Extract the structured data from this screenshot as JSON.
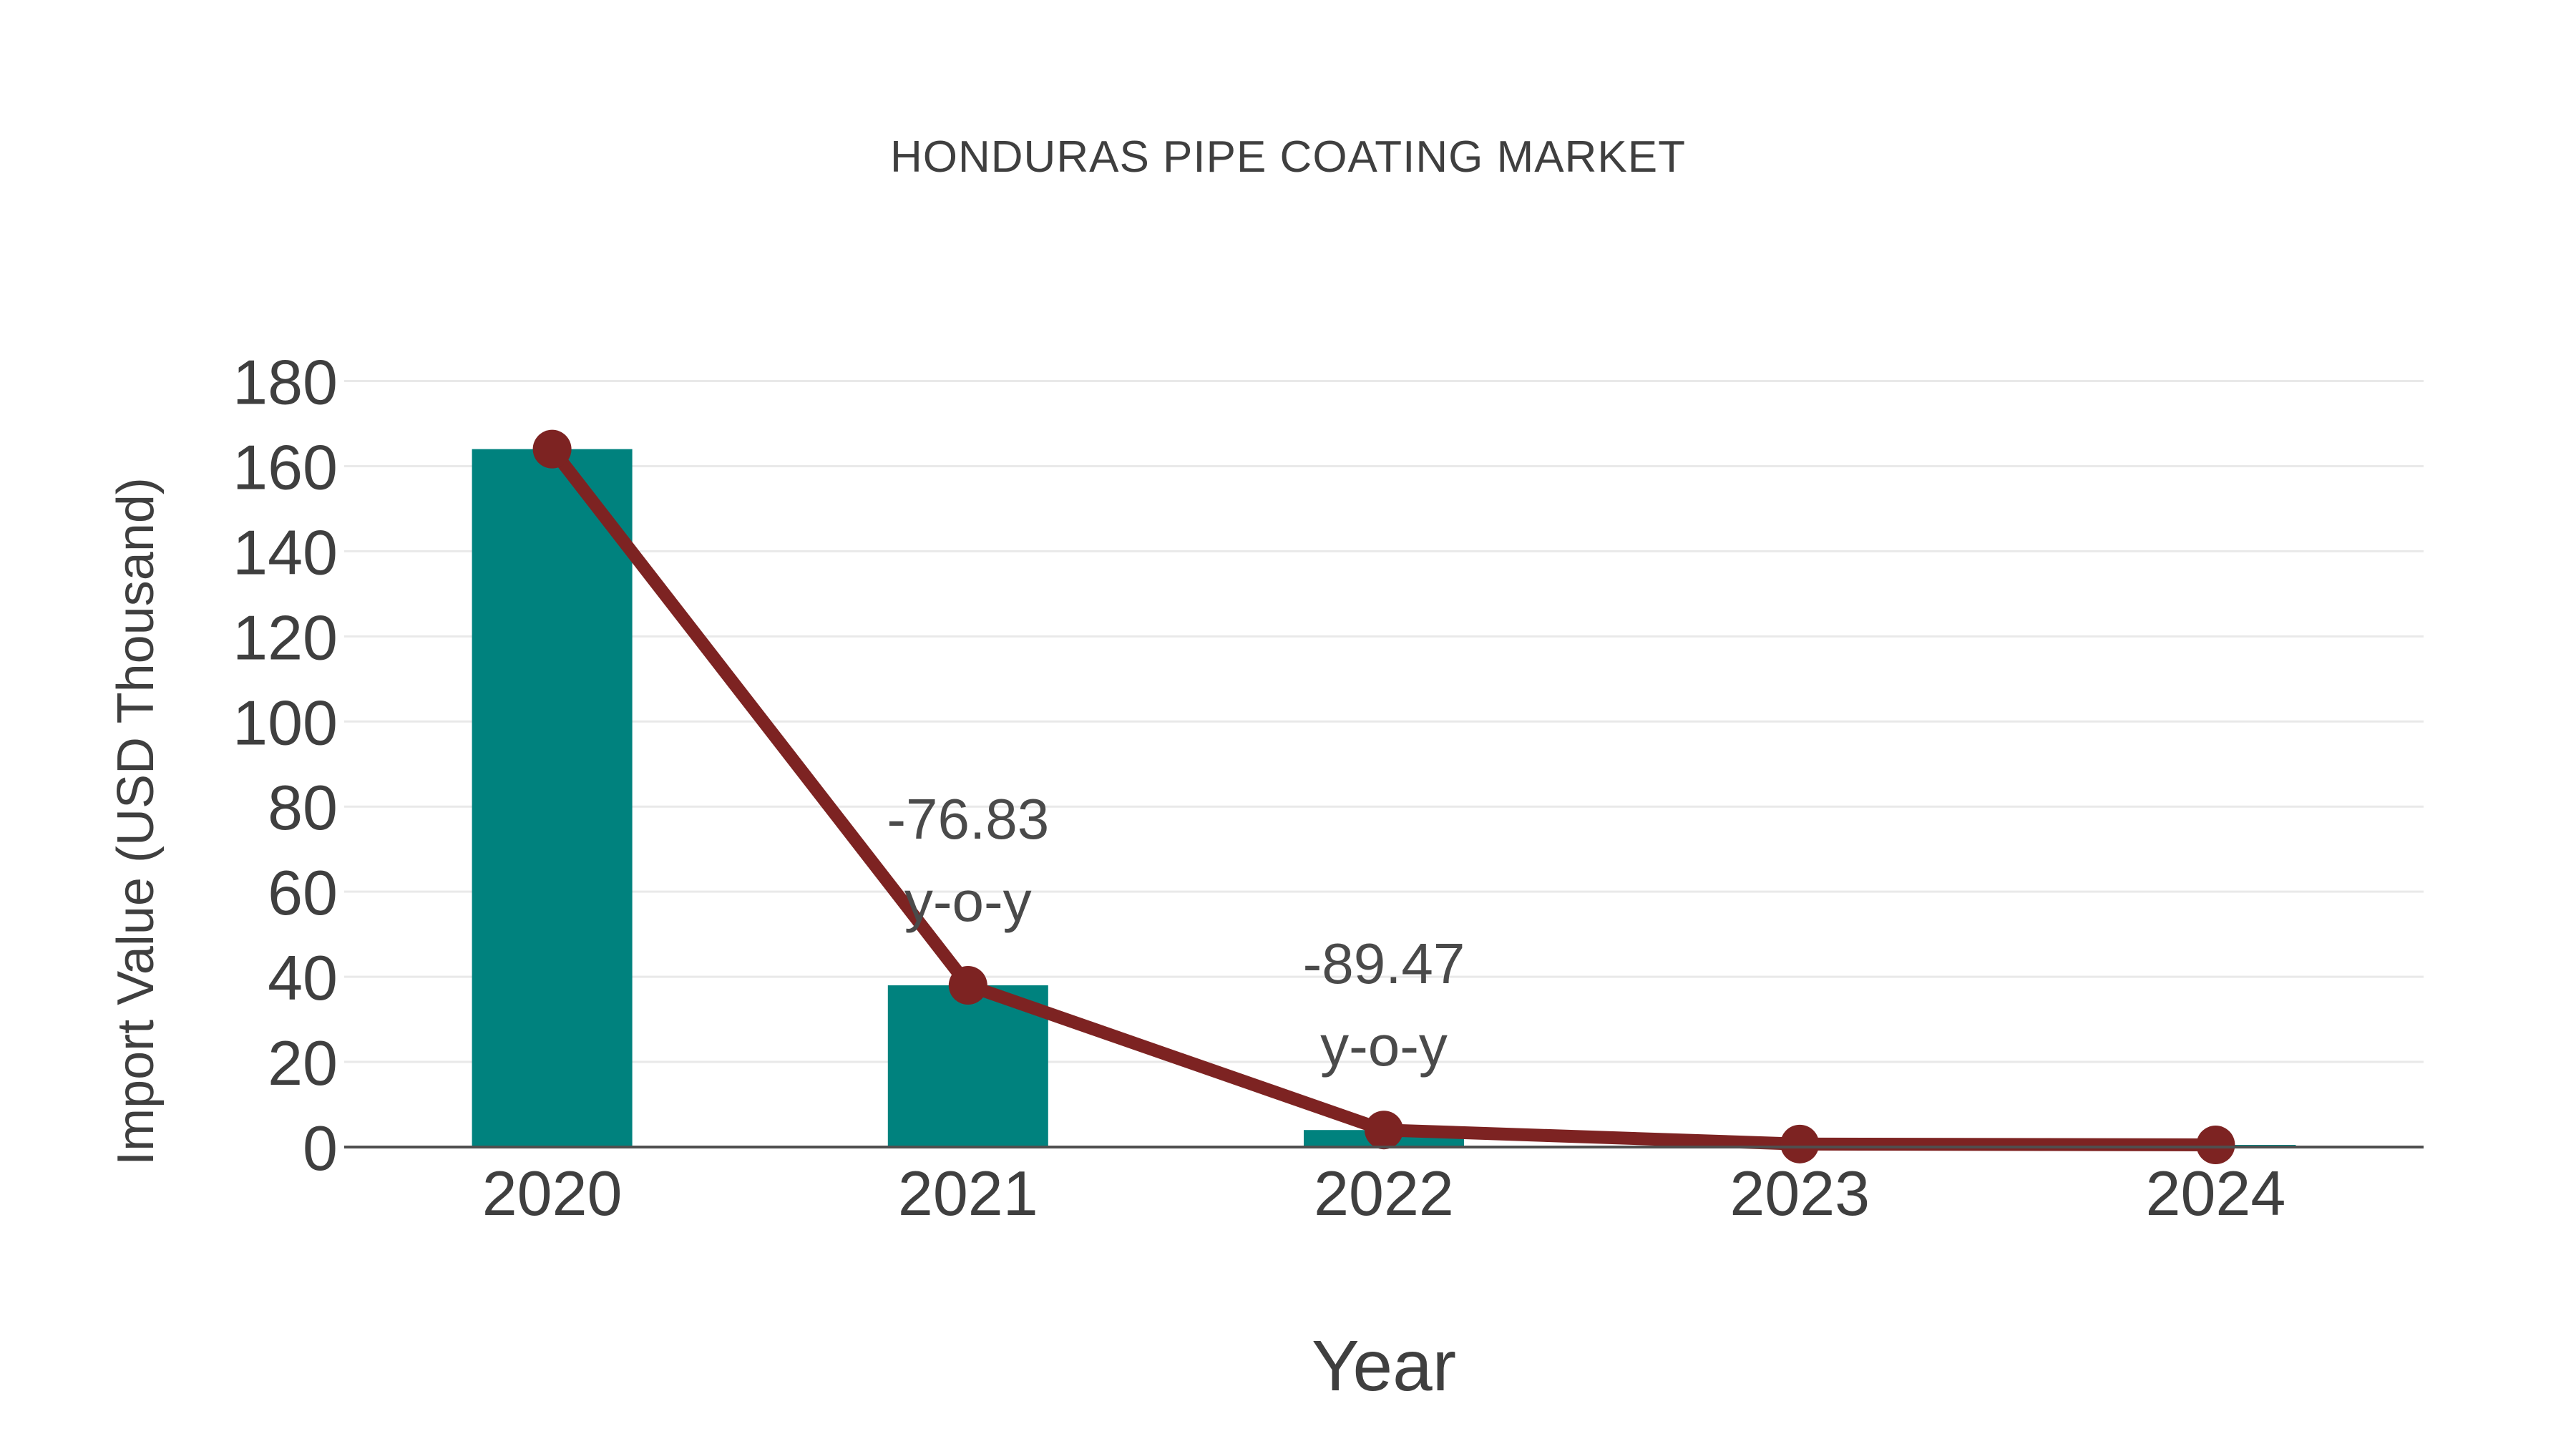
{
  "title": "HONDURAS PIPE COATING MARKET",
  "chart_data": {
    "type": "bar",
    "subtype": "bar+line combo",
    "title": "HONDURAS PIPE COATING MARKET",
    "xlabel": "Year",
    "ylabel": "Import Value (USD Thousand)",
    "categories": [
      "2020",
      "2021",
      "2022",
      "2023",
      "2024"
    ],
    "series": [
      {
        "name": "Import Value bars",
        "type": "bar",
        "values": [
          164,
          38,
          4,
          0.7,
          0.5
        ]
      },
      {
        "name": "Import Value trend",
        "type": "line",
        "values": [
          164,
          38,
          4,
          0.7,
          0.5
        ]
      }
    ],
    "annotations": [
      {
        "category": "2021",
        "lines": [
          "-76.83",
          "y-o-y"
        ]
      },
      {
        "category": "2022",
        "lines": [
          "-89.47",
          "y-o-y"
        ]
      }
    ],
    "ylim": [
      0,
      180
    ],
    "yticks": [
      0,
      20,
      40,
      60,
      80,
      100,
      120,
      140,
      160,
      180
    ],
    "grid": "horizontal-only",
    "legend_position": "none",
    "colors": {
      "bar": "#00827E",
      "line": "#7D2322",
      "marker": "#7D2322",
      "gridline": "#E9E9E9",
      "axis_line": "#4F4F4F",
      "tick_text": "#3F3F3F",
      "annotation_text": "#4A4A4A",
      "background": "#FFFFFF"
    }
  }
}
